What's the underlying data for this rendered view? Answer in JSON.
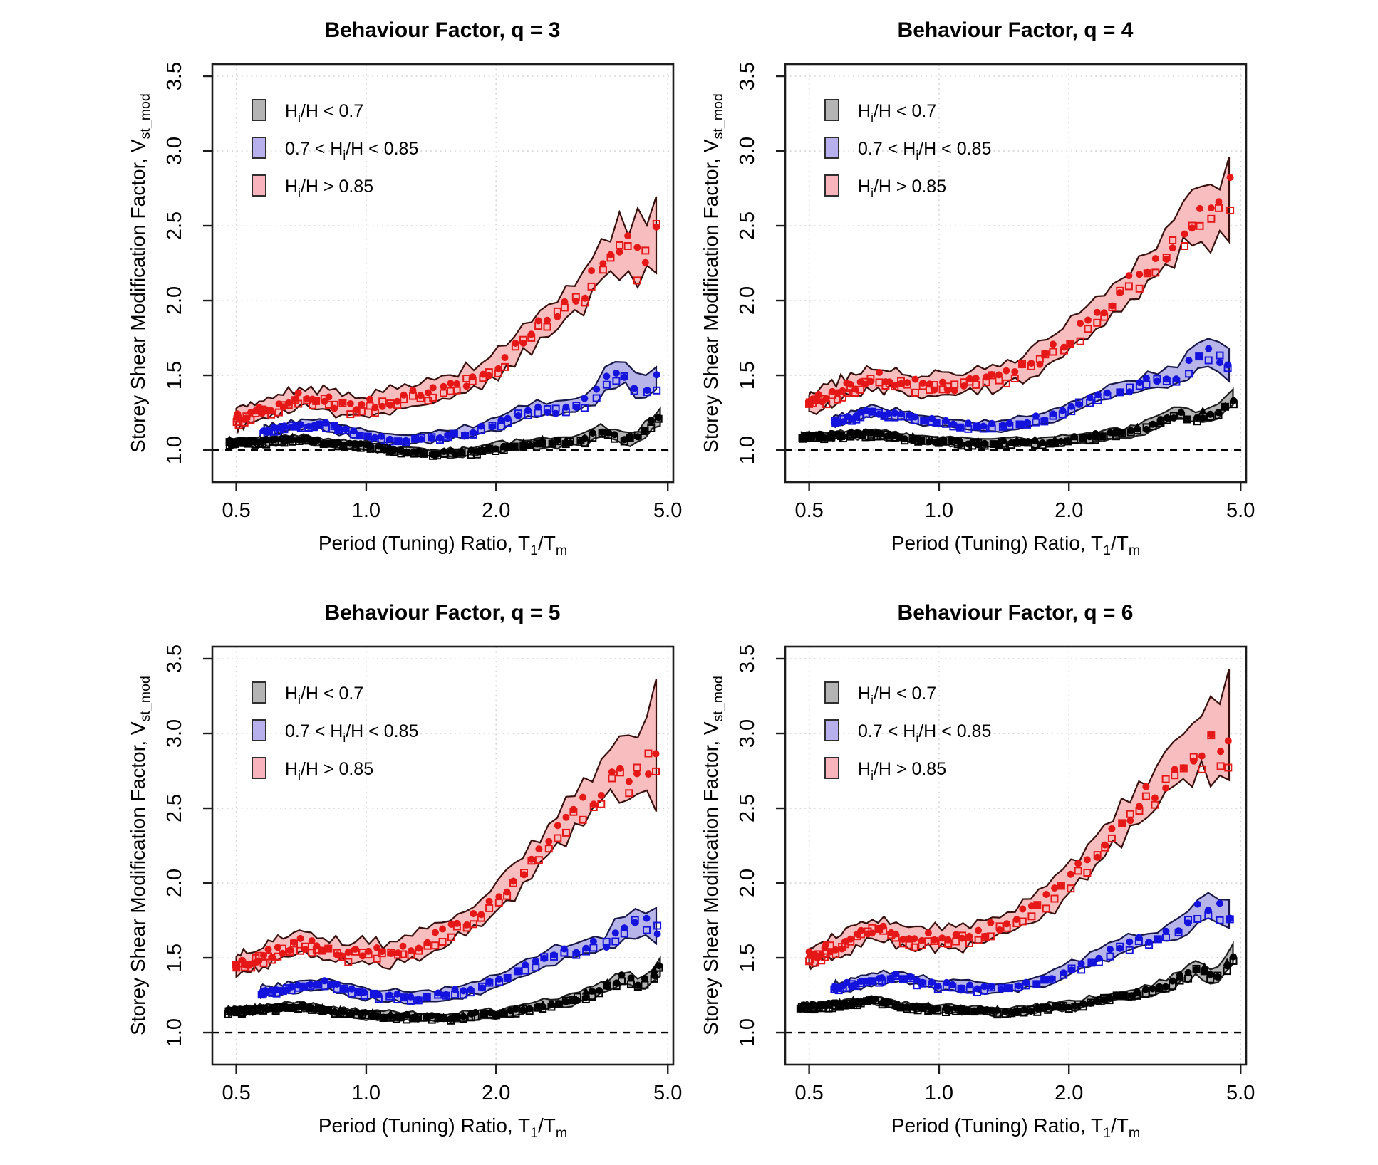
{
  "page": {
    "background": "#ffffff"
  },
  "axes": {
    "x_label": "Period (Tuning) Ratio, T_{1}/T_{m}",
    "y_label": "Storey Shear Modification Factor, V_{st_mod}",
    "x_scale": "log",
    "xlim": [
      0.44,
      5.15
    ],
    "ylim": [
      0.786,
      3.581
    ],
    "x_ticks": [
      {
        "v": 0.5,
        "label": "0.5"
      },
      {
        "v": 1.0,
        "label": "1.0"
      },
      {
        "v": 2.0,
        "label": "2.0"
      },
      {
        "v": 5.0,
        "label": "5.0"
      }
    ],
    "y_ticks": [
      {
        "v": 1.0,
        "label": "1.0"
      },
      {
        "v": 1.5,
        "label": "1.5"
      },
      {
        "v": 2.0,
        "label": "2.0"
      },
      {
        "v": 2.5,
        "label": "2.5"
      },
      {
        "v": 3.0,
        "label": "3.0"
      },
      {
        "v": 3.5,
        "label": "3.5"
      }
    ],
    "grid": {
      "show": true,
      "color": "#d4d4d4",
      "style": "dotted"
    },
    "reference_line": {
      "value": 1.0,
      "style": "dashed",
      "color": "#000000"
    }
  },
  "legend": {
    "position": "top-left-inside",
    "items": [
      {
        "label": "H_{i}/H < 0.7",
        "swatch_fill": "#b4b4b4",
        "swatch_stroke": "#2e2e2e"
      },
      {
        "label": "0.7 < H_{i}/H < 0.85",
        "swatch_fill": "#b7b0ec",
        "swatch_stroke": "#2e2e2e"
      },
      {
        "label": "H_{i}/H > 0.85",
        "swatch_fill": "#f9b3bc",
        "swatch_stroke": "#2e2e2e"
      }
    ]
  },
  "chart_data": [
    {
      "type": "area",
      "title": "Behaviour Factor, q = 3",
      "q": 3,
      "series": [
        {
          "name": "Hi/H < 0.7",
          "group": "lt07",
          "band_fill": "#b4b4b4",
          "band_stroke": "#1f1f1f",
          "marker_color": "#000000",
          "x": [
            0.48,
            0.6,
            0.7,
            0.8,
            0.9,
            1.0,
            1.1,
            1.25,
            1.4,
            1.6,
            1.8,
            2.0,
            2.3,
            2.6,
            3.0,
            3.2,
            3.5,
            3.8,
            4.1,
            4.4,
            4.8
          ],
          "y": [
            1.05,
            1.06,
            1.08,
            1.05,
            1.04,
            1.03,
            1.01,
            0.99,
            0.98,
            0.98,
            0.99,
            1.02,
            1.03,
            1.05,
            1.06,
            1.07,
            1.12,
            1.1,
            1.08,
            1.12,
            1.22
          ],
          "hw": [
            0.025,
            0.025,
            0.025,
            0.025,
            0.025,
            0.025,
            0.025,
            0.025,
            0.025,
            0.025,
            0.025,
            0.03,
            0.03,
            0.03,
            0.03,
            0.035,
            0.04,
            0.04,
            0.04,
            0.045,
            0.05
          ]
        },
        {
          "name": "0.7 < Hi/H < 0.85",
          "group": "mid",
          "band_fill": "#b7b4ea",
          "band_stroke": "#18184a",
          "marker_color": "#1313dd",
          "x": [
            0.58,
            0.7,
            0.78,
            0.9,
            1.0,
            1.15,
            1.3,
            1.5,
            1.7,
            1.9,
            2.1,
            2.3,
            2.5,
            2.7,
            3.0,
            3.3,
            3.6,
            4.0,
            4.3,
            4.7
          ],
          "y": [
            1.13,
            1.17,
            1.18,
            1.13,
            1.1,
            1.07,
            1.07,
            1.1,
            1.12,
            1.15,
            1.2,
            1.25,
            1.28,
            1.26,
            1.3,
            1.33,
            1.48,
            1.5,
            1.42,
            1.47
          ],
          "hw": [
            0.03,
            0.03,
            0.03,
            0.03,
            0.03,
            0.03,
            0.03,
            0.035,
            0.035,
            0.04,
            0.04,
            0.04,
            0.045,
            0.045,
            0.05,
            0.05,
            0.07,
            0.07,
            0.07,
            0.08
          ]
        },
        {
          "name": "Hi/H > 0.85",
          "group": "gt085",
          "band_fill": "#f8bdbf",
          "band_stroke": "#38100e",
          "marker_color": "#e51717",
          "x": [
            0.5,
            0.6,
            0.7,
            0.8,
            0.9,
            1.0,
            1.1,
            1.2,
            1.35,
            1.5,
            1.65,
            1.8,
            1.95,
            2.1,
            2.3,
            2.5,
            2.7,
            2.9,
            3.1,
            3.3,
            3.6,
            3.9,
            4.1,
            4.4,
            4.7
          ],
          "y": [
            1.21,
            1.28,
            1.35,
            1.33,
            1.3,
            1.3,
            1.32,
            1.35,
            1.38,
            1.42,
            1.45,
            1.5,
            1.55,
            1.63,
            1.73,
            1.82,
            1.88,
            1.97,
            2.03,
            2.12,
            2.3,
            2.36,
            2.33,
            2.3,
            2.47
          ],
          "hw": [
            0.06,
            0.06,
            0.07,
            0.07,
            0.07,
            0.07,
            0.07,
            0.07,
            0.07,
            0.08,
            0.08,
            0.08,
            0.09,
            0.09,
            0.1,
            0.1,
            0.1,
            0.11,
            0.11,
            0.12,
            0.13,
            0.16,
            0.18,
            0.22,
            0.25
          ]
        }
      ]
    },
    {
      "type": "area",
      "title": "Behaviour Factor, q = 4",
      "q": 4,
      "series": [
        {
          "name": "Hi/H < 0.7",
          "group": "lt07",
          "band_fill": "#b4b4b4",
          "band_stroke": "#1f1f1f",
          "marker_color": "#000000",
          "x": [
            0.48,
            0.6,
            0.7,
            0.85,
            1.0,
            1.15,
            1.3,
            1.5,
            1.7,
            1.9,
            2.1,
            2.4,
            2.7,
            3.0,
            3.3,
            3.6,
            3.9,
            4.2,
            4.5,
            4.8
          ],
          "y": [
            1.09,
            1.1,
            1.11,
            1.08,
            1.06,
            1.05,
            1.04,
            1.06,
            1.05,
            1.07,
            1.08,
            1.1,
            1.12,
            1.15,
            1.2,
            1.25,
            1.21,
            1.24,
            1.27,
            1.35
          ],
          "hw": [
            0.025,
            0.025,
            0.025,
            0.025,
            0.025,
            0.025,
            0.025,
            0.025,
            0.03,
            0.03,
            0.03,
            0.03,
            0.03,
            0.035,
            0.04,
            0.04,
            0.04,
            0.045,
            0.05,
            0.05
          ]
        },
        {
          "name": "0.7 < Hi/H < 0.85",
          "group": "mid",
          "band_fill": "#b7b4ea",
          "band_stroke": "#18184a",
          "marker_color": "#1313dd",
          "x": [
            0.57,
            0.7,
            0.8,
            0.9,
            1.0,
            1.2,
            1.4,
            1.6,
            1.8,
            2.0,
            2.2,
            2.4,
            2.6,
            2.8,
            3.0,
            3.3,
            3.6,
            3.9,
            4.3,
            4.7
          ],
          "y": [
            1.19,
            1.26,
            1.24,
            1.21,
            1.19,
            1.16,
            1.17,
            1.2,
            1.22,
            1.28,
            1.33,
            1.38,
            1.4,
            1.42,
            1.45,
            1.48,
            1.5,
            1.62,
            1.65,
            1.57
          ],
          "hw": [
            0.03,
            0.03,
            0.03,
            0.03,
            0.03,
            0.03,
            0.035,
            0.035,
            0.04,
            0.04,
            0.04,
            0.045,
            0.045,
            0.05,
            0.05,
            0.05,
            0.06,
            0.08,
            0.08,
            0.09
          ]
        },
        {
          "name": "Hi/H > 0.85",
          "group": "gt085",
          "band_fill": "#f8bdbf",
          "band_stroke": "#38100e",
          "marker_color": "#e51717",
          "x": [
            0.5,
            0.6,
            0.7,
            0.8,
            0.9,
            1.0,
            1.1,
            1.2,
            1.4,
            1.6,
            1.8,
            2.0,
            2.2,
            2.4,
            2.6,
            2.8,
            3.0,
            3.2,
            3.5,
            3.8,
            4.1,
            4.4,
            4.7
          ],
          "y": [
            1.31,
            1.41,
            1.49,
            1.46,
            1.43,
            1.44,
            1.43,
            1.46,
            1.5,
            1.57,
            1.65,
            1.75,
            1.85,
            1.95,
            2.05,
            2.12,
            2.2,
            2.26,
            2.4,
            2.55,
            2.62,
            2.58,
            2.74
          ],
          "hw": [
            0.06,
            0.07,
            0.07,
            0.07,
            0.07,
            0.07,
            0.07,
            0.07,
            0.08,
            0.08,
            0.08,
            0.09,
            0.09,
            0.1,
            0.1,
            0.11,
            0.11,
            0.12,
            0.13,
            0.15,
            0.18,
            0.22,
            0.28
          ]
        }
      ]
    },
    {
      "type": "area",
      "title": "Behaviour Factor, q = 5",
      "q": 5,
      "series": [
        {
          "name": "Hi/H < 0.7",
          "group": "lt07",
          "band_fill": "#b4b4b4",
          "band_stroke": "#1f1f1f",
          "marker_color": "#000000",
          "x": [
            0.48,
            0.6,
            0.7,
            0.85,
            1.0,
            1.2,
            1.4,
            1.6,
            1.8,
            2.0,
            2.2,
            2.5,
            2.8,
            3.1,
            3.4,
            3.7,
            4.0,
            4.2,
            4.5,
            4.8
          ],
          "y": [
            1.14,
            1.16,
            1.18,
            1.14,
            1.12,
            1.11,
            1.1,
            1.1,
            1.12,
            1.12,
            1.15,
            1.18,
            1.2,
            1.23,
            1.28,
            1.33,
            1.38,
            1.32,
            1.35,
            1.45
          ],
          "hw": [
            0.025,
            0.025,
            0.025,
            0.025,
            0.025,
            0.025,
            0.025,
            0.025,
            0.03,
            0.03,
            0.03,
            0.03,
            0.03,
            0.035,
            0.04,
            0.04,
            0.045,
            0.045,
            0.05,
            0.05
          ]
        },
        {
          "name": "0.7 < Hi/H < 0.85",
          "group": "mid",
          "band_fill": "#b7b4ea",
          "band_stroke": "#18184a",
          "marker_color": "#1313dd",
          "x": [
            0.57,
            0.7,
            0.8,
            0.9,
            1.0,
            1.2,
            1.4,
            1.6,
            1.8,
            2.0,
            2.2,
            2.4,
            2.6,
            2.8,
            3.0,
            3.3,
            3.6,
            3.9,
            4.3,
            4.7
          ],
          "y": [
            1.27,
            1.31,
            1.33,
            1.29,
            1.26,
            1.24,
            1.24,
            1.27,
            1.3,
            1.35,
            1.4,
            1.45,
            1.5,
            1.53,
            1.55,
            1.58,
            1.6,
            1.72,
            1.75,
            1.7
          ],
          "hw": [
            0.035,
            0.035,
            0.035,
            0.035,
            0.035,
            0.035,
            0.035,
            0.035,
            0.04,
            0.04,
            0.04,
            0.045,
            0.045,
            0.05,
            0.05,
            0.05,
            0.06,
            0.08,
            0.08,
            0.09
          ]
        },
        {
          "name": "Hi/H > 0.85",
          "group": "gt085",
          "band_fill": "#f8bdbf",
          "band_stroke": "#38100e",
          "marker_color": "#e51717",
          "x": [
            0.5,
            0.6,
            0.7,
            0.8,
            0.9,
            1.0,
            1.1,
            1.2,
            1.4,
            1.6,
            1.8,
            2.0,
            2.2,
            2.4,
            2.6,
            2.8,
            3.0,
            3.2,
            3.5,
            3.8,
            4.1,
            4.4,
            4.7
          ],
          "y": [
            1.45,
            1.53,
            1.6,
            1.57,
            1.53,
            1.55,
            1.52,
            1.55,
            1.62,
            1.7,
            1.79,
            1.9,
            2.02,
            2.12,
            2.25,
            2.35,
            2.45,
            2.53,
            2.65,
            2.78,
            2.77,
            2.82,
            2.92
          ],
          "hw": [
            0.06,
            0.07,
            0.07,
            0.07,
            0.07,
            0.07,
            0.07,
            0.07,
            0.08,
            0.08,
            0.09,
            0.09,
            0.1,
            0.1,
            0.11,
            0.11,
            0.12,
            0.12,
            0.14,
            0.16,
            0.2,
            0.25,
            0.3
          ]
        }
      ]
    },
    {
      "type": "area",
      "title": "Behaviour Factor, q = 6",
      "q": 6,
      "series": [
        {
          "name": "Hi/H < 0.7",
          "group": "lt07",
          "band_fill": "#b4b4b4",
          "band_stroke": "#1f1f1f",
          "marker_color": "#000000",
          "x": [
            0.48,
            0.6,
            0.7,
            0.85,
            1.0,
            1.2,
            1.4,
            1.6,
            1.8,
            2.0,
            2.2,
            2.5,
            2.8,
            3.1,
            3.4,
            3.7,
            4.0,
            4.2,
            4.5,
            4.8
          ],
          "y": [
            1.17,
            1.19,
            1.22,
            1.17,
            1.16,
            1.15,
            1.14,
            1.15,
            1.17,
            1.18,
            1.2,
            1.24,
            1.26,
            1.28,
            1.33,
            1.38,
            1.44,
            1.38,
            1.4,
            1.52
          ],
          "hw": [
            0.025,
            0.025,
            0.025,
            0.025,
            0.025,
            0.025,
            0.025,
            0.025,
            0.03,
            0.03,
            0.03,
            0.03,
            0.03,
            0.035,
            0.04,
            0.04,
            0.045,
            0.045,
            0.05,
            0.05
          ]
        },
        {
          "name": "0.7 < Hi/H < 0.85",
          "group": "mid",
          "band_fill": "#b7b4ea",
          "band_stroke": "#18184a",
          "marker_color": "#1313dd",
          "x": [
            0.57,
            0.7,
            0.8,
            0.9,
            1.0,
            1.2,
            1.4,
            1.6,
            1.8,
            2.0,
            2.2,
            2.4,
            2.6,
            2.8,
            3.0,
            3.3,
            3.6,
            3.9,
            4.3,
            4.7
          ],
          "y": [
            1.3,
            1.35,
            1.38,
            1.34,
            1.32,
            1.3,
            1.3,
            1.33,
            1.36,
            1.42,
            1.47,
            1.52,
            1.57,
            1.6,
            1.62,
            1.65,
            1.68,
            1.8,
            1.85,
            1.8
          ],
          "hw": [
            0.035,
            0.035,
            0.035,
            0.035,
            0.035,
            0.035,
            0.035,
            0.035,
            0.04,
            0.04,
            0.04,
            0.045,
            0.045,
            0.05,
            0.05,
            0.05,
            0.07,
            0.09,
            0.09,
            0.1
          ]
        },
        {
          "name": "Hi/H > 0.85",
          "group": "gt085",
          "band_fill": "#f8bdbf",
          "band_stroke": "#38100e",
          "marker_color": "#e51717",
          "x": [
            0.5,
            0.6,
            0.7,
            0.8,
            0.9,
            1.0,
            1.1,
            1.2,
            1.4,
            1.6,
            1.8,
            2.0,
            2.2,
            2.4,
            2.6,
            2.8,
            3.0,
            3.2,
            3.5,
            3.8,
            4.1,
            4.4,
            4.7
          ],
          "y": [
            1.51,
            1.6,
            1.69,
            1.66,
            1.62,
            1.64,
            1.62,
            1.66,
            1.72,
            1.8,
            1.9,
            2.02,
            2.14,
            2.25,
            2.38,
            2.47,
            2.57,
            2.64,
            2.77,
            2.9,
            2.95,
            3.0,
            3.05
          ],
          "hw": [
            0.06,
            0.07,
            0.07,
            0.07,
            0.07,
            0.07,
            0.07,
            0.07,
            0.08,
            0.08,
            0.09,
            0.1,
            0.1,
            0.11,
            0.11,
            0.12,
            0.12,
            0.13,
            0.15,
            0.17,
            0.22,
            0.27,
            0.32
          ]
        }
      ]
    }
  ]
}
